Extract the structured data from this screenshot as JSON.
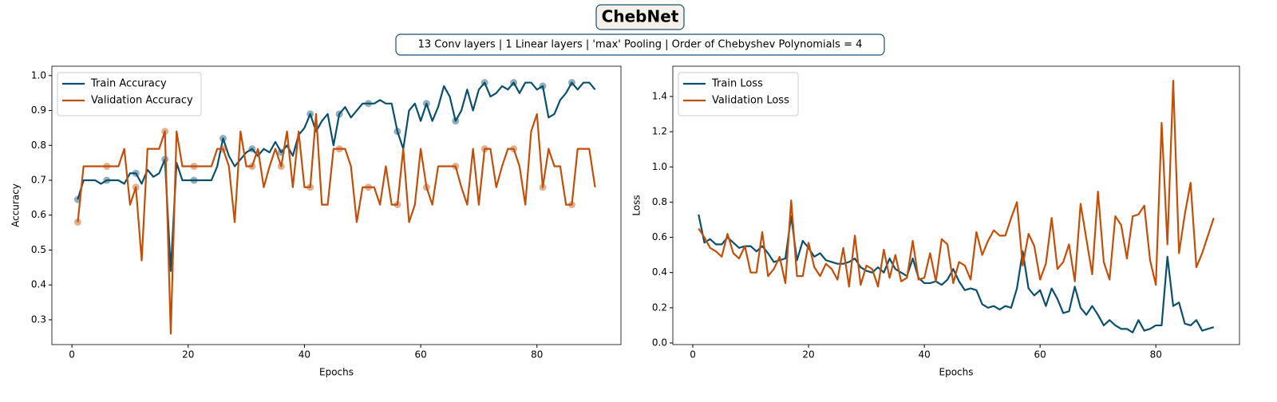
{
  "title": "ChebNet",
  "subtitle": "13 Conv layers | 1 Linear layers | 'max' Pooling | Order of Chebyshev Polynomials = 4",
  "chart_data": [
    {
      "type": "line",
      "xlabel": "Epochs",
      "ylabel": "Accuracy",
      "legend": "upper left",
      "grid": false,
      "marker_every": 5,
      "xlim": [
        -3.45,
        94.45
      ],
      "xticks": [
        0,
        20,
        40,
        60,
        80
      ],
      "ylim": [
        0.229,
        1.027
      ],
      "yticks": [
        0.3,
        0.4,
        0.5,
        0.6,
        0.7,
        0.8,
        0.9,
        {
          "value": 1,
          "label": "1.0"
        }
      ],
      "x": [
        1,
        2,
        3,
        4,
        5,
        6,
        7,
        8,
        9,
        10,
        11,
        12,
        13,
        14,
        15,
        16,
        17,
        18,
        19,
        20,
        21,
        22,
        23,
        24,
        25,
        26,
        27,
        28,
        29,
        30,
        31,
        32,
        33,
        34,
        35,
        36,
        37,
        38,
        39,
        40,
        41,
        42,
        43,
        44,
        45,
        46,
        47,
        48,
        49,
        50,
        51,
        52,
        53,
        54,
        55,
        56,
        57,
        58,
        59,
        60,
        61,
        62,
        63,
        64,
        65,
        66,
        67,
        68,
        69,
        70,
        71,
        72,
        73,
        74,
        75,
        76,
        77,
        78,
        79,
        80,
        81,
        82,
        83,
        84,
        85,
        86,
        87,
        88,
        89,
        90
      ],
      "series": [
        {
          "name": "Train Accuracy",
          "color": "#0b4f6c",
          "values": [
            0.645,
            0.7,
            0.7,
            0.7,
            0.69,
            0.7,
            0.7,
            0.7,
            0.69,
            0.72,
            0.72,
            0.69,
            0.73,
            0.71,
            0.72,
            0.76,
            0.44,
            0.75,
            0.7,
            0.7,
            0.7,
            0.7,
            0.7,
            0.7,
            0.74,
            0.82,
            0.77,
            0.74,
            0.76,
            0.78,
            0.79,
            0.77,
            0.79,
            0.78,
            0.81,
            0.78,
            0.8,
            0.77,
            0.83,
            0.85,
            0.89,
            0.84,
            0.87,
            0.89,
            0.8,
            0.89,
            0.91,
            0.88,
            0.9,
            0.92,
            0.92,
            0.92,
            0.93,
            0.92,
            0.92,
            0.84,
            0.79,
            0.9,
            0.92,
            0.87,
            0.92,
            0.87,
            0.91,
            0.97,
            0.94,
            0.87,
            0.9,
            0.96,
            0.9,
            0.96,
            0.98,
            0.94,
            0.95,
            0.97,
            0.96,
            0.98,
            0.95,
            0.98,
            0.98,
            0.96,
            0.97,
            0.88,
            0.89,
            0.93,
            0.95,
            0.98,
            0.96,
            0.98,
            0.98,
            0.96
          ]
        },
        {
          "name": "Validation Accuracy",
          "color": "#c14f0a",
          "values": [
            0.58,
            0.74,
            0.74,
            0.74,
            0.74,
            0.74,
            0.74,
            0.74,
            0.79,
            0.63,
            0.68,
            0.47,
            0.79,
            0.79,
            0.79,
            0.84,
            0.26,
            0.84,
            0.74,
            0.74,
            0.74,
            0.74,
            0.74,
            0.74,
            0.79,
            0.79,
            0.74,
            0.58,
            0.84,
            0.74,
            0.74,
            0.79,
            0.68,
            0.74,
            0.79,
            0.74,
            0.84,
            0.68,
            0.84,
            0.68,
            0.68,
            0.89,
            0.63,
            0.63,
            0.79,
            0.79,
            0.79,
            0.74,
            0.58,
            0.68,
            0.68,
            0.68,
            0.63,
            0.74,
            0.63,
            0.63,
            0.79,
            0.58,
            0.63,
            0.79,
            0.68,
            0.63,
            0.74,
            0.74,
            0.74,
            0.74,
            0.68,
            0.63,
            0.79,
            0.63,
            0.79,
            0.79,
            0.68,
            0.74,
            0.79,
            0.79,
            0.74,
            0.63,
            0.84,
            0.89,
            0.68,
            0.79,
            0.74,
            0.74,
            0.63,
            0.63,
            0.79,
            0.79,
            0.79,
            0.68
          ]
        }
      ]
    },
    {
      "type": "line",
      "xlabel": "Epochs",
      "ylabel": "Loss",
      "legend": "upper left",
      "grid": false,
      "xlim": [
        -3.45,
        94.45
      ],
      "xticks": [
        0,
        20,
        40,
        60,
        80
      ],
      "ylim": [
        -0.009,
        1.572
      ],
      "yticks": [
        {
          "value": 0,
          "label": "0.0"
        },
        0.2,
        0.4,
        0.6,
        0.8,
        {
          "value": 1,
          "label": "1.0"
        },
        1.2,
        1.4
      ],
      "x": [
        1,
        2,
        3,
        4,
        5,
        6,
        7,
        8,
        9,
        10,
        11,
        12,
        13,
        14,
        15,
        16,
        17,
        18,
        19,
        20,
        21,
        22,
        23,
        24,
        25,
        26,
        27,
        28,
        29,
        30,
        31,
        32,
        33,
        34,
        35,
        36,
        37,
        38,
        39,
        40,
        41,
        42,
        43,
        44,
        45,
        46,
        47,
        48,
        49,
        50,
        51,
        52,
        53,
        54,
        55,
        56,
        57,
        58,
        59,
        60,
        61,
        62,
        63,
        64,
        65,
        66,
        67,
        68,
        69,
        70,
        71,
        72,
        73,
        74,
        75,
        76,
        77,
        78,
        79,
        80,
        81,
        82,
        83,
        84,
        85,
        86,
        87,
        88,
        89,
        90
      ],
      "series": [
        {
          "name": "Train Loss",
          "color": "#0b4f6c",
          "values": [
            0.73,
            0.57,
            0.59,
            0.56,
            0.56,
            0.6,
            0.57,
            0.54,
            0.55,
            0.55,
            0.52,
            0.55,
            0.51,
            0.46,
            0.47,
            0.48,
            0.72,
            0.47,
            0.58,
            0.54,
            0.49,
            0.51,
            0.47,
            0.46,
            0.45,
            0.45,
            0.46,
            0.48,
            0.43,
            0.41,
            0.4,
            0.43,
            0.4,
            0.48,
            0.42,
            0.4,
            0.38,
            0.48,
            0.37,
            0.34,
            0.34,
            0.35,
            0.33,
            0.36,
            0.42,
            0.35,
            0.3,
            0.31,
            0.3,
            0.22,
            0.2,
            0.21,
            0.19,
            0.21,
            0.2,
            0.31,
            0.52,
            0.31,
            0.27,
            0.3,
            0.21,
            0.31,
            0.25,
            0.17,
            0.18,
            0.32,
            0.2,
            0.16,
            0.21,
            0.16,
            0.1,
            0.13,
            0.1,
            0.08,
            0.08,
            0.06,
            0.13,
            0.07,
            0.08,
            0.1,
            0.1,
            0.49,
            0.21,
            0.23,
            0.11,
            0.1,
            0.13,
            0.07,
            0.08,
            0.09
          ]
        },
        {
          "name": "Validation Loss",
          "color": "#c14f0a",
          "values": [
            0.65,
            0.6,
            0.54,
            0.52,
            0.49,
            0.62,
            0.51,
            0.48,
            0.55,
            0.4,
            0.4,
            0.63,
            0.38,
            0.42,
            0.49,
            0.34,
            0.81,
            0.38,
            0.38,
            0.57,
            0.43,
            0.38,
            0.45,
            0.42,
            0.36,
            0.54,
            0.32,
            0.61,
            0.33,
            0.44,
            0.42,
            0.32,
            0.53,
            0.37,
            0.5,
            0.35,
            0.37,
            0.58,
            0.36,
            0.37,
            0.51,
            0.35,
            0.59,
            0.56,
            0.34,
            0.46,
            0.44,
            0.36,
            0.63,
            0.5,
            0.58,
            0.64,
            0.61,
            0.61,
            0.71,
            0.8,
            0.44,
            0.62,
            0.55,
            0.36,
            0.45,
            0.71,
            0.42,
            0.46,
            0.56,
            0.35,
            0.79,
            0.59,
            0.39,
            0.86,
            0.46,
            0.36,
            0.72,
            0.67,
            0.48,
            0.72,
            0.73,
            0.78,
            0.47,
            0.33,
            1.25,
            0.56,
            1.49,
            0.51,
            0.73,
            0.91,
            0.43,
            0.51,
            0.61,
            0.71
          ]
        }
      ]
    }
  ]
}
